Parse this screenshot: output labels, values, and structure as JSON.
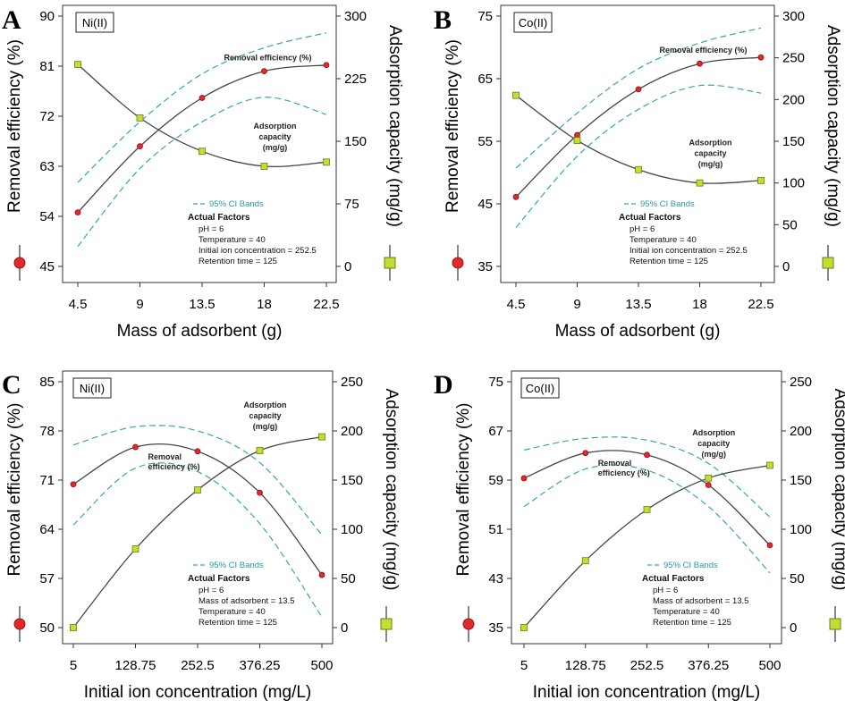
{
  "chart_data": [
    {
      "panel": "A",
      "tag": "Ni(II)",
      "type": "line",
      "xlabel": "Mass of adsorbent (g)",
      "ylabel_left": "Removal efficiency  (%)",
      "ylabel_right": "Adsorption capacity (mg/g)",
      "x_ticks": [
        "4.5",
        "9",
        "13.5",
        "18",
        "22.5"
      ],
      "x_range": [
        4.5,
        22.5
      ],
      "left_ticks": [
        45,
        54,
        63,
        72,
        81,
        90
      ],
      "left_range": [
        45,
        90
      ],
      "right_ticks": [
        0,
        75,
        150,
        225,
        300
      ],
      "right_range": [
        0,
        300
      ],
      "series": [
        {
          "name": "Removal efficiency (%)",
          "axis": "left",
          "marker": "circle",
          "color": "#d81e1e",
          "x": [
            4.5,
            9,
            13.5,
            18,
            22.5
          ],
          "values": [
            54.7,
            66.6,
            75.3,
            80.1,
            81.2
          ],
          "ci_lower": [
            48.6,
            62.6,
            71.0,
            75.4,
            72.3
          ],
          "ci_upper": [
            60.1,
            71.0,
            79.6,
            84.3,
            87.0
          ]
        },
        {
          "name": "Adsorption capacity (mg/g)",
          "axis": "right",
          "marker": "square",
          "color": "#b8d530",
          "x": [
            4.5,
            9,
            13.5,
            18,
            22.5
          ],
          "values": [
            242,
            178,
            138,
            120,
            125
          ]
        }
      ],
      "annotations": {
        "line1": "Removal efficiency (%)",
        "line2": [
          "Adsorption",
          "capacity",
          "(mg/g)"
        ]
      },
      "ci_label": "95% CI Bands",
      "factors_title": "Actual Factors",
      "factors": [
        "pH = 6",
        "Temperature = 40",
        "Initial ion concentration = 252.5",
        "Retention time = 125"
      ]
    },
    {
      "panel": "B",
      "tag": "Co(II)",
      "type": "line",
      "xlabel": "Mass of adsorbent (g)",
      "ylabel_left": "Removal efficiency  (%)",
      "ylabel_right": "Adsorption capacity (mg/g)",
      "x_ticks": [
        "4.5",
        "9",
        "13.5",
        "18",
        "22.5"
      ],
      "x_range": [
        4.5,
        22.5
      ],
      "left_ticks": [
        35,
        45,
        55,
        65,
        75
      ],
      "left_range": [
        35,
        75
      ],
      "right_ticks": [
        0,
        50,
        100,
        150,
        200,
        250,
        300
      ],
      "right_range": [
        0,
        300
      ],
      "series": [
        {
          "name": "Removal efficiency (%)",
          "axis": "left",
          "marker": "circle",
          "color": "#d81e1e",
          "x": [
            4.5,
            9,
            13.5,
            18,
            22.5
          ],
          "values": [
            46.1,
            56.0,
            63.3,
            67.4,
            68.4
          ],
          "ci_lower": [
            41.2,
            52.6,
            60.1,
            63.9,
            62.7
          ],
          "ci_upper": [
            50.7,
            59.5,
            66.6,
            70.7,
            73.1
          ]
        },
        {
          "name": "Adsorption capacity (mg/g)",
          "axis": "right",
          "marker": "square",
          "color": "#b8d530",
          "x": [
            4.5,
            9,
            13.5,
            18,
            22.5
          ],
          "values": [
            205,
            151,
            116,
            100,
            103
          ]
        }
      ],
      "annotations": {
        "line1": "Removal efficiency (%)",
        "line2": [
          "Adsorption",
          "capacity",
          "(mg/g)"
        ]
      },
      "ci_label": "95% CI Bands",
      "factors_title": "Actual Factors",
      "factors": [
        "pH = 6",
        "Temperature = 40",
        "Initial ion concentration = 252.5",
        "Retention time = 125"
      ]
    },
    {
      "panel": "C",
      "tag": "Ni(II)",
      "type": "line",
      "xlabel": "Initial ion concentration  (mg/L)",
      "ylabel_left": "Removal efficiency  (%)",
      "ylabel_right": "Adsorption capacity (mg/g)",
      "x_ticks": [
        "5",
        "128.75",
        "252.5",
        "376.25",
        "500"
      ],
      "x_range": [
        5,
        500
      ],
      "left_ticks": [
        50,
        57,
        64,
        71,
        78,
        85
      ],
      "left_range": [
        50,
        85
      ],
      "right_ticks": [
        0,
        50,
        100,
        150,
        200,
        250
      ],
      "right_range": [
        0,
        250
      ],
      "series": [
        {
          "name": "Removal efficiency (%)",
          "axis": "left",
          "marker": "circle",
          "color": "#d81e1e",
          "x": [
            5,
            128.75,
            252.5,
            376.25,
            500
          ],
          "values": [
            70.4,
            75.7,
            75.1,
            69.2,
            57.5
          ],
          "ci_lower": [
            64.6,
            72.7,
            72.2,
            64.8,
            51.5
          ],
          "ci_upper": [
            76.0,
            78.6,
            78.0,
            73.5,
            63.2
          ]
        },
        {
          "name": "Adsorption capacity (mg/g)",
          "axis": "right",
          "marker": "square",
          "color": "#b8d530",
          "x": [
            5,
            128.75,
            252.5,
            376.25,
            500
          ],
          "values": [
            0,
            80,
            140,
            180,
            194
          ]
        }
      ],
      "annotations": {
        "line1": [
          "Removal",
          "efficiency (%)"
        ],
        "line2": [
          "Adsorption",
          "capacity",
          "(mg/g)"
        ]
      },
      "ci_label": "95% CI Bands",
      "factors_title": "Actual Factors",
      "factors": [
        "pH = 6",
        "Mass of adsorbent = 13.5",
        "Temperature = 40",
        "Retention time = 125"
      ]
    },
    {
      "panel": "D",
      "tag": "Co(II)",
      "type": "line",
      "xlabel": "Initial ion concentration  (mg/L)",
      "ylabel_left": "Removal efficiency  (%)",
      "ylabel_right": "Adsorption capacity (mg/g)",
      "x_ticks": [
        "5",
        "128.75",
        "252.5",
        "376.25",
        "500"
      ],
      "x_range": [
        5,
        500
      ],
      "left_ticks": [
        35,
        43,
        51,
        59,
        67,
        75
      ],
      "left_range": [
        35,
        75
      ],
      "right_ticks": [
        0,
        50,
        100,
        150,
        200,
        250
      ],
      "right_range": [
        0,
        250
      ],
      "series": [
        {
          "name": "Removal efficiency (%)",
          "axis": "left",
          "marker": "circle",
          "color": "#d81e1e",
          "x": [
            5,
            128.75,
            252.5,
            376.25,
            500
          ],
          "values": [
            59.3,
            63.4,
            63.1,
            58.2,
            48.4
          ],
          "ci_lower": [
            54.7,
            60.8,
            60.6,
            54.7,
            43.9
          ],
          "ci_upper": [
            63.9,
            65.8,
            65.5,
            61.7,
            53.0
          ]
        },
        {
          "name": "Adsorption capacity (mg/g)",
          "axis": "right",
          "marker": "square",
          "color": "#b8d530",
          "x": [
            5,
            128.75,
            252.5,
            376.25,
            500
          ],
          "values": [
            0,
            68,
            120,
            152,
            165
          ]
        }
      ],
      "annotations": {
        "line1": [
          "Removal",
          "efficiency (%)"
        ],
        "line2": [
          "Adsorption",
          "capacity",
          "(mg/g)"
        ]
      },
      "ci_label": "95% CI Bands",
      "factors_title": "Actual Factors",
      "factors": [
        "pH = 6",
        "Mass of adsorbent = 13.5",
        "Temperature = 40",
        "Retention time = 125"
      ]
    }
  ]
}
